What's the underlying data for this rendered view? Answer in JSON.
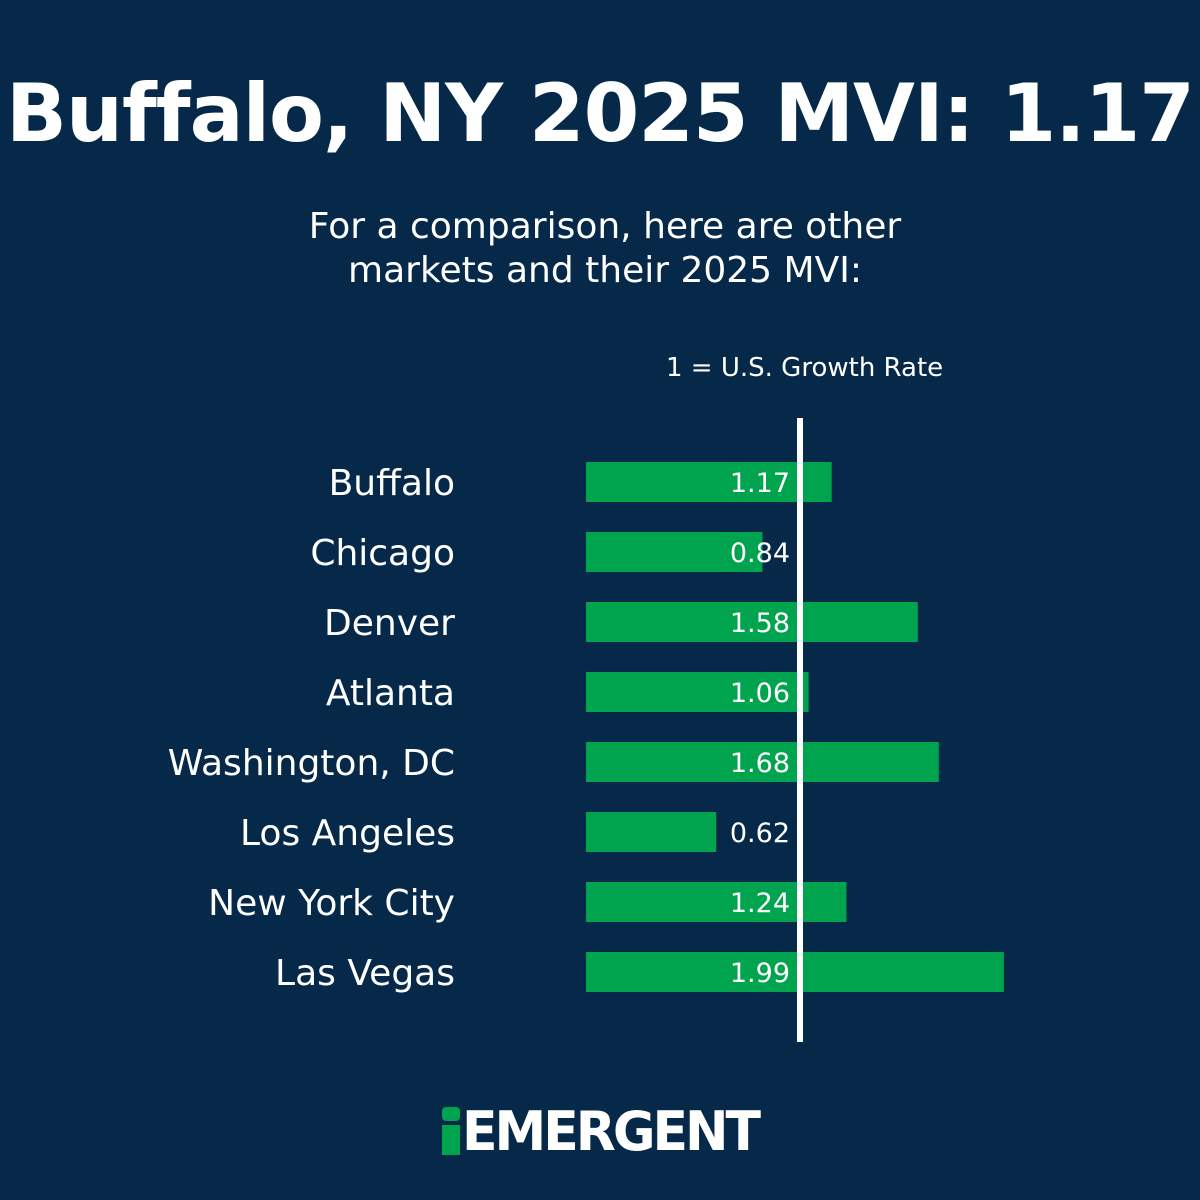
{
  "chart_data": {
    "type": "bar",
    "orientation": "horizontal",
    "title": "Buffalo, NY 2025 MVI: 1.17",
    "subtitle_lines": [
      "For a comparison, here are other",
      "markets and their 2025 MVI:"
    ],
    "reference_line": {
      "value": 1,
      "label": "1 = U.S. Growth Rate"
    },
    "categories": [
      "Buffalo",
      "Chicago",
      "Denver",
      "Atlanta",
      "Washington, DC",
      "Los Angeles",
      "New York City",
      "Las Vegas"
    ],
    "values": [
      1.17,
      0.84,
      1.58,
      1.06,
      1.68,
      0.62,
      1.24,
      1.99
    ],
    "value_labels": [
      "1.17",
      "0.84",
      "1.58",
      "1.06",
      "1.68",
      "0.62",
      "1.24",
      "1.99"
    ],
    "xlim": [
      0,
      2
    ],
    "grid": false,
    "legend": null
  },
  "brand": {
    "logo_text": "EMERGENT",
    "logo_letter_i": "i"
  },
  "colors": {
    "background": "#06294a",
    "bar": "#00a34e",
    "text": "#ffffff",
    "reference_line": "#ffffff",
    "logo_accent": "#00a34e"
  }
}
